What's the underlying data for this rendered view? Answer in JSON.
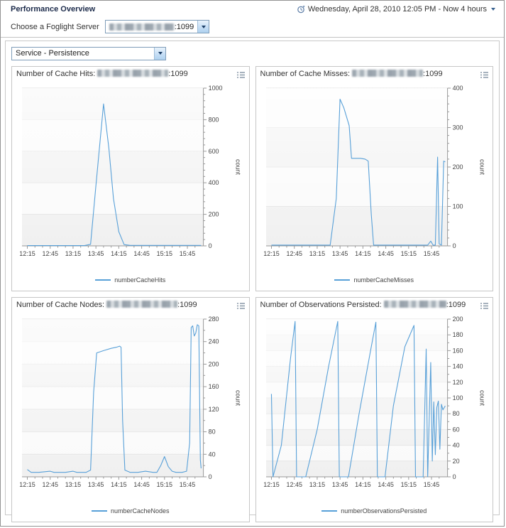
{
  "header": {
    "title": "Performance Overview",
    "time_range_label": "Wednesday, April 28, 2010 12:05 PM - Now 4 hours",
    "server_chooser_label": "Choose a Foglight Server",
    "server_value_suffix": ":1099",
    "service_selector_value": "Service - Persistence"
  },
  "colors": {
    "line": "#58a0d8",
    "axis": "#999999",
    "grid": "#e2e2e2",
    "band_dark": "#f0f0f0",
    "band_light": "#fafafa"
  },
  "panels": [
    {
      "title_prefix": "Number of Cache Hits:",
      "title_suffix": ":1099"
    },
    {
      "title_prefix": "Number of Cache Misses:",
      "title_suffix": ":1099"
    },
    {
      "title_prefix": "Number of Cache Nodes:",
      "title_suffix": ":1099"
    },
    {
      "title_prefix": "Number of Observations Persisted:",
      "title_suffix": ":1099"
    }
  ],
  "chart_data": [
    {
      "type": "line",
      "title": "Number of Cache Hits",
      "legend": "numberCacheHits",
      "ylabel": "count",
      "ylim": [
        0,
        1000
      ],
      "ytick_step": 200,
      "ytick_minor": 40,
      "xticks": [
        "12:15",
        "12:45",
        "13:15",
        "13:45",
        "14:15",
        "14:45",
        "15:15",
        "15:45"
      ],
      "points": [
        [
          "12:15",
          2
        ],
        [
          "12:35",
          2
        ],
        [
          "12:55",
          2
        ],
        [
          "13:15",
          2
        ],
        [
          "13:30",
          2
        ],
        [
          "13:38",
          10
        ],
        [
          "13:45",
          380
        ],
        [
          "13:55",
          900
        ],
        [
          "14:02",
          620
        ],
        [
          "14:08",
          300
        ],
        [
          "14:15",
          90
        ],
        [
          "14:22",
          8
        ],
        [
          "14:30",
          3
        ],
        [
          "14:45",
          3
        ],
        [
          "15:05",
          3
        ],
        [
          "15:25",
          3
        ],
        [
          "15:45",
          3
        ],
        [
          "16:03",
          3
        ]
      ]
    },
    {
      "type": "line",
      "title": "Number of Cache Misses",
      "legend": "numberCacheMisses",
      "ylabel": "count",
      "ylim": [
        0,
        400
      ],
      "ytick_step": 100,
      "ytick_minor": 20,
      "xticks": [
        "12:15",
        "12:45",
        "13:15",
        "13:45",
        "14:15",
        "14:45",
        "15:15",
        "15:45"
      ],
      "points": [
        [
          "12:15",
          2
        ],
        [
          "12:35",
          2
        ],
        [
          "12:55",
          2
        ],
        [
          "13:15",
          2
        ],
        [
          "13:32",
          2
        ],
        [
          "13:40",
          120
        ],
        [
          "13:45",
          372
        ],
        [
          "13:50",
          350
        ],
        [
          "13:57",
          305
        ],
        [
          "14:00",
          222
        ],
        [
          "14:12",
          222
        ],
        [
          "14:18",
          220
        ],
        [
          "14:22",
          215
        ],
        [
          "14:26",
          80
        ],
        [
          "14:29",
          2
        ],
        [
          "14:45",
          2
        ],
        [
          "15:05",
          2
        ],
        [
          "15:25",
          2
        ],
        [
          "15:40",
          2
        ],
        [
          "15:44",
          12
        ],
        [
          "15:47",
          2
        ],
        [
          "15:50",
          2
        ],
        [
          "15:53",
          225
        ],
        [
          "15:55",
          5
        ],
        [
          "15:58",
          2
        ],
        [
          "16:01",
          215
        ],
        [
          "16:03",
          213
        ]
      ]
    },
    {
      "type": "line",
      "title": "Number of Cache Nodes",
      "legend": "numberCacheNodes",
      "ylabel": "count",
      "ylim": [
        0,
        280
      ],
      "ytick_step": 40,
      "ytick_minor": 20,
      "xticks": [
        "12:15",
        "12:45",
        "13:15",
        "13:45",
        "14:15",
        "14:45",
        "15:15",
        "15:45"
      ],
      "points": [
        [
          "12:15",
          13
        ],
        [
          "12:20",
          8
        ],
        [
          "12:30",
          8
        ],
        [
          "12:45",
          10
        ],
        [
          "12:50",
          8
        ],
        [
          "13:05",
          8
        ],
        [
          "13:15",
          10
        ],
        [
          "13:20",
          8
        ],
        [
          "13:32",
          8
        ],
        [
          "13:38",
          12
        ],
        [
          "13:42",
          150
        ],
        [
          "13:46",
          220
        ],
        [
          "13:55",
          224
        ],
        [
          "14:05",
          228
        ],
        [
          "14:12",
          230
        ],
        [
          "14:16",
          232
        ],
        [
          "14:18",
          230
        ],
        [
          "14:20",
          100
        ],
        [
          "14:23",
          12
        ],
        [
          "14:30",
          8
        ],
        [
          "14:40",
          8
        ],
        [
          "14:50",
          10
        ],
        [
          "15:00",
          8
        ],
        [
          "15:05",
          8
        ],
        [
          "15:10",
          20
        ],
        [
          "15:15",
          36
        ],
        [
          "15:20",
          18
        ],
        [
          "15:25",
          10
        ],
        [
          "15:30",
          8
        ],
        [
          "15:38",
          8
        ],
        [
          "15:44",
          10
        ],
        [
          "15:48",
          60
        ],
        [
          "15:50",
          265
        ],
        [
          "15:52",
          268
        ],
        [
          "15:54",
          250
        ],
        [
          "15:56",
          255
        ],
        [
          "15:58",
          270
        ],
        [
          "16:00",
          268
        ],
        [
          "16:02",
          30
        ],
        [
          "16:03",
          15
        ]
      ]
    },
    {
      "type": "line",
      "title": "Number of Observations Persisted",
      "legend": "numberObservationsPersisted",
      "ylabel": "count",
      "ylim": [
        0,
        200
      ],
      "ytick_step": 20,
      "ytick_minor": 10,
      "xticks": [
        "12:15",
        "12:45",
        "13:15",
        "13:45",
        "14:15",
        "14:45",
        "15:15",
        "15:45"
      ],
      "points": [
        [
          "12:15",
          105
        ],
        [
          "12:17",
          0
        ],
        [
          "12:28",
          40
        ],
        [
          "12:40",
          150
        ],
        [
          "12:46",
          197
        ],
        [
          "12:48",
          0
        ],
        [
          "13:00",
          0
        ],
        [
          "13:15",
          60
        ],
        [
          "13:30",
          140
        ],
        [
          "13:42",
          197
        ],
        [
          "13:44",
          0
        ],
        [
          "13:56",
          0
        ],
        [
          "14:10",
          80
        ],
        [
          "14:25",
          160
        ],
        [
          "14:32",
          196
        ],
        [
          "14:34",
          0
        ],
        [
          "14:44",
          0
        ],
        [
          "14:55",
          90
        ],
        [
          "15:10",
          165
        ],
        [
          "15:22",
          192
        ],
        [
          "15:24",
          0
        ],
        [
          "15:34",
          0
        ],
        [
          "15:38",
          162
        ],
        [
          "15:40",
          0
        ],
        [
          "15:44",
          145
        ],
        [
          "15:46",
          20
        ],
        [
          "15:48",
          95
        ],
        [
          "15:50",
          28
        ],
        [
          "15:52",
          88
        ],
        [
          "15:54",
          96
        ],
        [
          "15:56",
          35
        ],
        [
          "15:58",
          92
        ],
        [
          "16:00",
          85
        ],
        [
          "16:03",
          90
        ]
      ]
    }
  ]
}
